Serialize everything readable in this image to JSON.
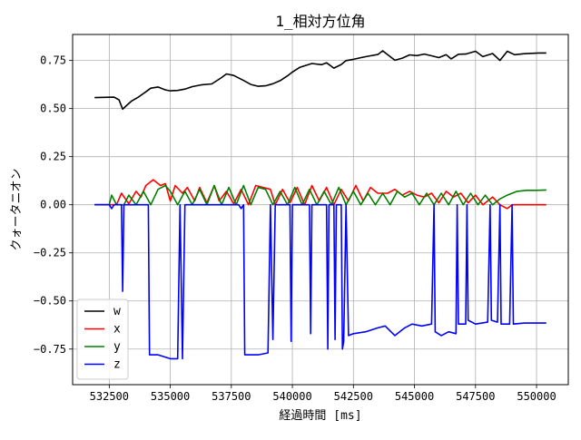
{
  "chart_data": {
    "type": "line",
    "title": "1_相対方位角",
    "xlabel": "経過時間 [ms]",
    "ylabel": "クォータニオン",
    "xlim": [
      531000,
      551300
    ],
    "ylim": [
      -0.935,
      0.885
    ],
    "x_ticks": [
      532500,
      535000,
      537500,
      540000,
      542500,
      545000,
      547500,
      550000
    ],
    "x_tick_labels": [
      "532500",
      "535000",
      "537500",
      "540000",
      "542500",
      "545000",
      "547500",
      "550000"
    ],
    "y_ticks": [
      0.75,
      0.5,
      0.25,
      0.0,
      -0.25,
      -0.5,
      -0.75
    ],
    "y_tick_labels": [
      "0.75",
      "0.50",
      "0.25",
      "0.00",
      "−0.25",
      "−0.50",
      "−0.75"
    ],
    "grid": true,
    "legend_position": "lower-left",
    "series": [
      {
        "name": "w",
        "color": "#000000",
        "points": [
          [
            531900,
            0.557
          ],
          [
            532700,
            0.559
          ],
          [
            532900,
            0.545
          ],
          [
            533050,
            0.497
          ],
          [
            533200,
            0.515
          ],
          [
            533400,
            0.538
          ],
          [
            533700,
            0.56
          ],
          [
            534000,
            0.587
          ],
          [
            534200,
            0.606
          ],
          [
            534500,
            0.612
          ],
          [
            534800,
            0.597
          ],
          [
            535000,
            0.592
          ],
          [
            535300,
            0.594
          ],
          [
            535600,
            0.601
          ],
          [
            535900,
            0.614
          ],
          [
            536300,
            0.624
          ],
          [
            536700,
            0.628
          ],
          [
            537100,
            0.661
          ],
          [
            537300,
            0.68
          ],
          [
            537600,
            0.672
          ],
          [
            538000,
            0.646
          ],
          [
            538300,
            0.625
          ],
          [
            538600,
            0.616
          ],
          [
            538900,
            0.618
          ],
          [
            539200,
            0.629
          ],
          [
            539500,
            0.645
          ],
          [
            539800,
            0.67
          ],
          [
            540000,
            0.69
          ],
          [
            540300,
            0.714
          ],
          [
            540800,
            0.734
          ],
          [
            541200,
            0.728
          ],
          [
            541400,
            0.738
          ],
          [
            541700,
            0.71
          ],
          [
            542000,
            0.729
          ],
          [
            542200,
            0.749
          ],
          [
            542500,
            0.756
          ],
          [
            542900,
            0.767
          ],
          [
            543200,
            0.774
          ],
          [
            543500,
            0.781
          ],
          [
            543700,
            0.8
          ],
          [
            543900,
            0.78
          ],
          [
            544200,
            0.751
          ],
          [
            544500,
            0.762
          ],
          [
            544800,
            0.779
          ],
          [
            545100,
            0.775
          ],
          [
            545400,
            0.783
          ],
          [
            545700,
            0.774
          ],
          [
            546000,
            0.765
          ],
          [
            546300,
            0.78
          ],
          [
            546500,
            0.758
          ],
          [
            546800,
            0.782
          ],
          [
            547100,
            0.783
          ],
          [
            547500,
            0.798
          ],
          [
            547800,
            0.77
          ],
          [
            548200,
            0.786
          ],
          [
            548500,
            0.75
          ],
          [
            548800,
            0.798
          ],
          [
            549100,
            0.78
          ],
          [
            549500,
            0.785
          ],
          [
            549800,
            0.787
          ],
          [
            550100,
            0.789
          ],
          [
            550400,
            0.789
          ]
        ]
      },
      {
        "name": "x",
        "color": "#ff0000",
        "points": [
          [
            531900,
            0.0
          ],
          [
            532800,
            0.0
          ],
          [
            533000,
            0.06
          ],
          [
            533300,
            0.005
          ],
          [
            533600,
            0.07
          ],
          [
            533800,
            0.04
          ],
          [
            534000,
            0.1
          ],
          [
            534300,
            0.13
          ],
          [
            534600,
            0.1
          ],
          [
            534800,
            0.11
          ],
          [
            535000,
            0.02
          ],
          [
            535200,
            0.1
          ],
          [
            535500,
            0.06
          ],
          [
            535700,
            0.09
          ],
          [
            536000,
            0.02
          ],
          [
            536200,
            0.09
          ],
          [
            536500,
            0.01
          ],
          [
            536800,
            0.1
          ],
          [
            537000,
            0.02
          ],
          [
            537300,
            0.07
          ],
          [
            537600,
            0.005
          ],
          [
            537900,
            0.08
          ],
          [
            538200,
            0.0
          ],
          [
            538500,
            0.1
          ],
          [
            538800,
            0.09
          ],
          [
            539100,
            0.08
          ],
          [
            539300,
            0.0
          ],
          [
            539600,
            0.08
          ],
          [
            539900,
            0.01
          ],
          [
            540200,
            0.09
          ],
          [
            540500,
            0.0
          ],
          [
            540800,
            0.1
          ],
          [
            541100,
            0.02
          ],
          [
            541400,
            0.09
          ],
          [
            541700,
            0.0
          ],
          [
            542000,
            0.08
          ],
          [
            542300,
            0.02
          ],
          [
            542600,
            0.1
          ],
          [
            542900,
            0.02
          ],
          [
            543200,
            0.09
          ],
          [
            543500,
            0.06
          ],
          [
            543900,
            0.06
          ],
          [
            544200,
            0.08
          ],
          [
            544500,
            0.05
          ],
          [
            544800,
            0.07
          ],
          [
            545100,
            0.05
          ],
          [
            545400,
            0.04
          ],
          [
            545700,
            0.06
          ],
          [
            546000,
            0.01
          ],
          [
            546300,
            0.07
          ],
          [
            546600,
            0.04
          ],
          [
            546900,
            0.06
          ],
          [
            547200,
            0.01
          ],
          [
            547500,
            0.05
          ],
          [
            547800,
            0.0
          ],
          [
            548200,
            0.04
          ],
          [
            548500,
            0.0
          ],
          [
            548800,
            -0.02
          ],
          [
            549000,
            0.0
          ],
          [
            549500,
            0.0
          ],
          [
            550400,
            0.0
          ]
        ]
      },
      {
        "name": "y",
        "color": "#008000",
        "points": [
          [
            531900,
            0.0
          ],
          [
            532500,
            0.0
          ],
          [
            532600,
            0.05
          ],
          [
            532800,
            0.0
          ],
          [
            533100,
            0.0
          ],
          [
            533300,
            0.05
          ],
          [
            533600,
            0.0
          ],
          [
            533900,
            0.07
          ],
          [
            534200,
            0.0
          ],
          [
            534500,
            0.08
          ],
          [
            534800,
            0.1
          ],
          [
            535000,
            0.07
          ],
          [
            535300,
            0.0
          ],
          [
            535600,
            0.07
          ],
          [
            535900,
            0.0
          ],
          [
            536200,
            0.08
          ],
          [
            536500,
            0.0
          ],
          [
            536800,
            0.1
          ],
          [
            537100,
            0.0
          ],
          [
            537400,
            0.09
          ],
          [
            537700,
            0.0
          ],
          [
            538000,
            0.1
          ],
          [
            538300,
            0.0
          ],
          [
            538600,
            0.09
          ],
          [
            538900,
            0.08
          ],
          [
            539200,
            0.0
          ],
          [
            539500,
            0.07
          ],
          [
            539800,
            0.0
          ],
          [
            540100,
            0.09
          ],
          [
            540400,
            0.0
          ],
          [
            540700,
            0.08
          ],
          [
            541000,
            0.0
          ],
          [
            541300,
            0.07
          ],
          [
            541600,
            0.0
          ],
          [
            541900,
            0.09
          ],
          [
            542200,
            0.0
          ],
          [
            542500,
            0.07
          ],
          [
            542800,
            0.0
          ],
          [
            543100,
            0.06
          ],
          [
            543400,
            0.0
          ],
          [
            543700,
            0.06
          ],
          [
            544000,
            0.0
          ],
          [
            544300,
            0.07
          ],
          [
            544600,
            0.04
          ],
          [
            544900,
            0.06
          ],
          [
            545200,
            0.0
          ],
          [
            545500,
            0.06
          ],
          [
            545800,
            0.0
          ],
          [
            546100,
            0.06
          ],
          [
            546400,
            0.0
          ],
          [
            546700,
            0.07
          ],
          [
            547000,
            0.0
          ],
          [
            547300,
            0.06
          ],
          [
            547600,
            0.0
          ],
          [
            547900,
            0.05
          ],
          [
            548200,
            0.0
          ],
          [
            548500,
            0.03
          ],
          [
            548800,
            0.05
          ],
          [
            549200,
            0.07
          ],
          [
            549600,
            0.075
          ],
          [
            550000,
            0.075
          ],
          [
            550400,
            0.077
          ]
        ]
      },
      {
        "name": "z",
        "color": "#0000ff",
        "points": [
          [
            531900,
            0.0
          ],
          [
            532500,
            0.0
          ],
          [
            532600,
            -0.02
          ],
          [
            532700,
            0.0
          ],
          [
            533000,
            0.0
          ],
          [
            533050,
            -0.45
          ],
          [
            533100,
            0.0
          ],
          [
            534100,
            0.0
          ],
          [
            534150,
            -0.78
          ],
          [
            534500,
            -0.78
          ],
          [
            535000,
            -0.8
          ],
          [
            535300,
            -0.8
          ],
          [
            535400,
            0.0
          ],
          [
            535500,
            -0.8
          ],
          [
            535600,
            0.0
          ],
          [
            537800,
            0.0
          ],
          [
            537900,
            -0.02
          ],
          [
            538000,
            0.0
          ],
          [
            538050,
            -0.78
          ],
          [
            538600,
            -0.78
          ],
          [
            539000,
            -0.77
          ],
          [
            539100,
            0.0
          ],
          [
            539200,
            -0.7
          ],
          [
            539300,
            0.0
          ],
          [
            539900,
            0.0
          ],
          [
            539950,
            -0.71
          ],
          [
            540000,
            0.0
          ],
          [
            540700,
            0.0
          ],
          [
            540750,
            -0.67
          ],
          [
            540800,
            0.0
          ],
          [
            541400,
            0.0
          ],
          [
            541450,
            -0.75
          ],
          [
            541500,
            0.0
          ],
          [
            541700,
            0.0
          ],
          [
            541750,
            -0.7
          ],
          [
            541800,
            0.0
          ],
          [
            542000,
            0.0
          ],
          [
            542050,
            -0.75
          ],
          [
            542100,
            -0.71
          ],
          [
            542200,
            0.0
          ],
          [
            542300,
            -0.68
          ],
          [
            542500,
            -0.67
          ],
          [
            543000,
            -0.66
          ],
          [
            543500,
            -0.64
          ],
          [
            543800,
            -0.63
          ],
          [
            544200,
            -0.68
          ],
          [
            544600,
            -0.64
          ],
          [
            544900,
            -0.62
          ],
          [
            545300,
            -0.63
          ],
          [
            545700,
            -0.62
          ],
          [
            545800,
            0.0
          ],
          [
            545850,
            -0.66
          ],
          [
            546100,
            -0.68
          ],
          [
            546400,
            -0.66
          ],
          [
            546700,
            -0.67
          ],
          [
            546750,
            0.0
          ],
          [
            546800,
            -0.62
          ],
          [
            547100,
            -0.62
          ],
          [
            547150,
            0.0
          ],
          [
            547200,
            -0.6
          ],
          [
            547500,
            -0.62
          ],
          [
            548000,
            -0.61
          ],
          [
            548100,
            0.0
          ],
          [
            548150,
            -0.6
          ],
          [
            548400,
            -0.61
          ],
          [
            548500,
            0.0
          ],
          [
            548550,
            -0.62
          ],
          [
            548900,
            -0.62
          ],
          [
            549000,
            0.0
          ],
          [
            549050,
            -0.62
          ],
          [
            549500,
            -0.615
          ],
          [
            550400,
            -0.615
          ]
        ]
      }
    ]
  }
}
